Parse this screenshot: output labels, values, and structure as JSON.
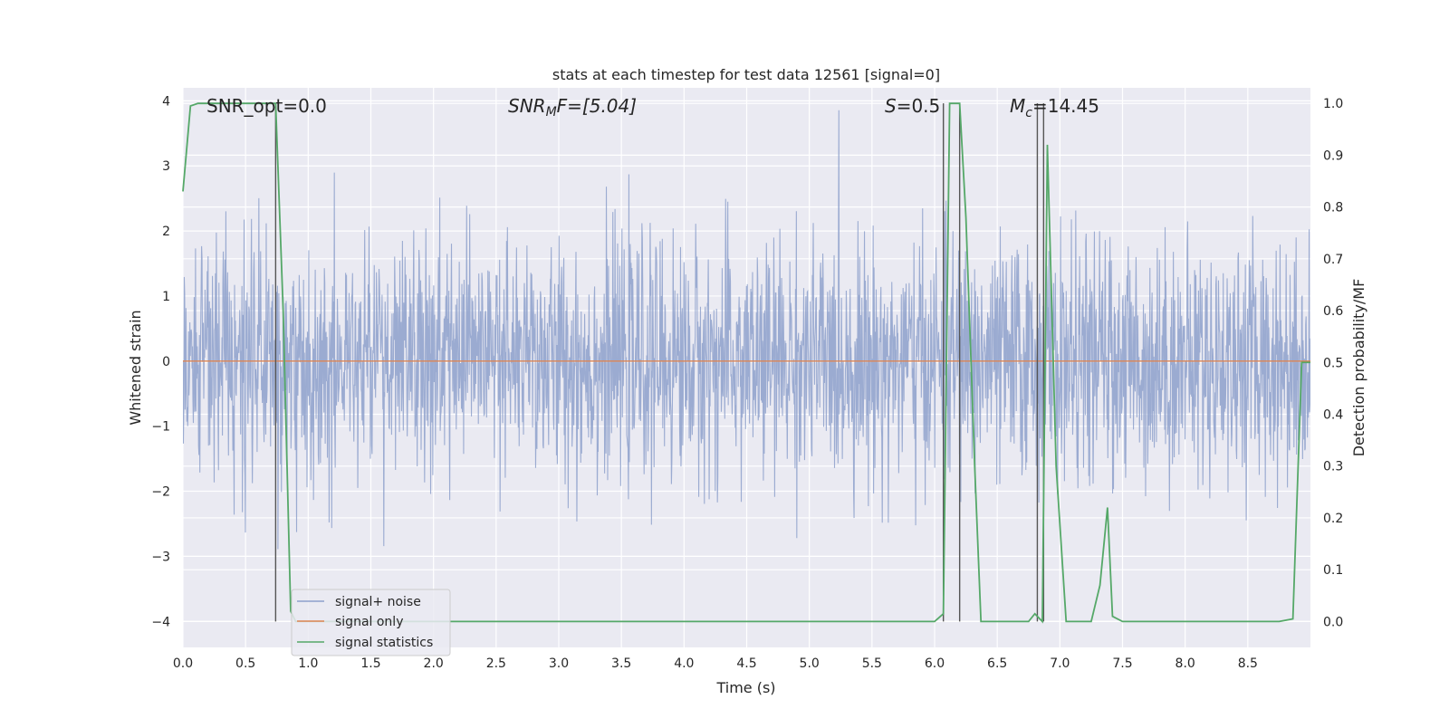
{
  "chart_data": {
    "type": "line",
    "title": "stats at each timestep for test data 12561 [signal=0]",
    "xlabel": "Time (s)",
    "ylabel_left": "Whitened strain",
    "ylabel_right": "Detection probability/MF",
    "xlim": [
      0,
      9.0
    ],
    "ylim_left": [
      -4.4,
      4.2
    ],
    "ylim_right": [
      -0.05,
      1.03
    ],
    "x_ticks": [
      "0.0",
      "0.5",
      "1.0",
      "1.5",
      "2.0",
      "2.5",
      "3.0",
      "3.5",
      "4.0",
      "4.5",
      "5.0",
      "5.5",
      "6.0",
      "6.5",
      "7.0",
      "7.5",
      "8.0",
      "8.5"
    ],
    "y_ticks_left": [
      "−4",
      "−3",
      "−2",
      "−1",
      "0",
      "1",
      "2",
      "3",
      "4"
    ],
    "y_ticks_right": [
      "0.0",
      "0.1",
      "0.2",
      "0.3",
      "0.4",
      "0.5",
      "0.6",
      "0.7",
      "0.8",
      "0.9",
      "1.0"
    ],
    "grid": true,
    "legend_position": "bottom-left",
    "annotations": {
      "snr_opt": "SNR_opt=0.0",
      "snr_mf_main": "SNR",
      "snr_mf_sub": "M",
      "snr_mf_rest": "F=[5.04]",
      "s_main": "S",
      "s_rest": "=0.5",
      "mc_main": "M",
      "mc_sub": "c",
      "mc_rest": "=14.45"
    },
    "series": [
      {
        "name": "signal+ noise",
        "axis": "left",
        "color": "#8da0cb",
        "description_values": "whitened noise, roughly ±1.7 band with spikes to about ±3.5",
        "envelope_typical": 1.7,
        "envelope_peak": 3.9
      },
      {
        "name": "signal only",
        "axis": "left",
        "color": "#dd8452",
        "x": [
          0,
          9.0
        ],
        "y": [
          0,
          0
        ]
      },
      {
        "name": "signal statistics",
        "axis": "right",
        "color": "#55a868",
        "x": [
          0.0,
          0.06,
          0.12,
          0.2,
          0.5,
          0.7,
          0.74,
          0.8,
          0.86,
          0.9,
          1.0,
          2.0,
          3.0,
          4.0,
          5.0,
          6.0,
          6.07,
          6.12,
          6.2,
          6.25,
          6.32,
          6.37,
          6.5,
          6.62,
          6.75,
          6.8,
          6.86,
          6.9,
          6.97,
          7.05,
          7.15,
          7.25,
          7.32,
          7.38,
          7.42,
          7.5,
          7.7,
          8.0,
          8.5,
          8.75,
          8.86,
          8.93,
          9.0
        ],
        "y": [
          0.83,
          0.995,
          1.0,
          1.0,
          1.0,
          1.0,
          1.0,
          0.6,
          0.02,
          0.0,
          0.0,
          0.0,
          0.0,
          0.0,
          0.0,
          0.0,
          0.015,
          1.0,
          1.0,
          0.78,
          0.3,
          0.0,
          0.0,
          0.0,
          0.0,
          0.015,
          0.0,
          0.92,
          0.3,
          0.0,
          0.0,
          0.0,
          0.07,
          0.22,
          0.01,
          0.0,
          0.0,
          0.0,
          0.0,
          0.0,
          0.005,
          0.5,
          0.5
        ]
      }
    ],
    "vertical_lines_x": [
      0.74,
      6.07,
      6.2,
      6.82,
      6.87
    ]
  }
}
